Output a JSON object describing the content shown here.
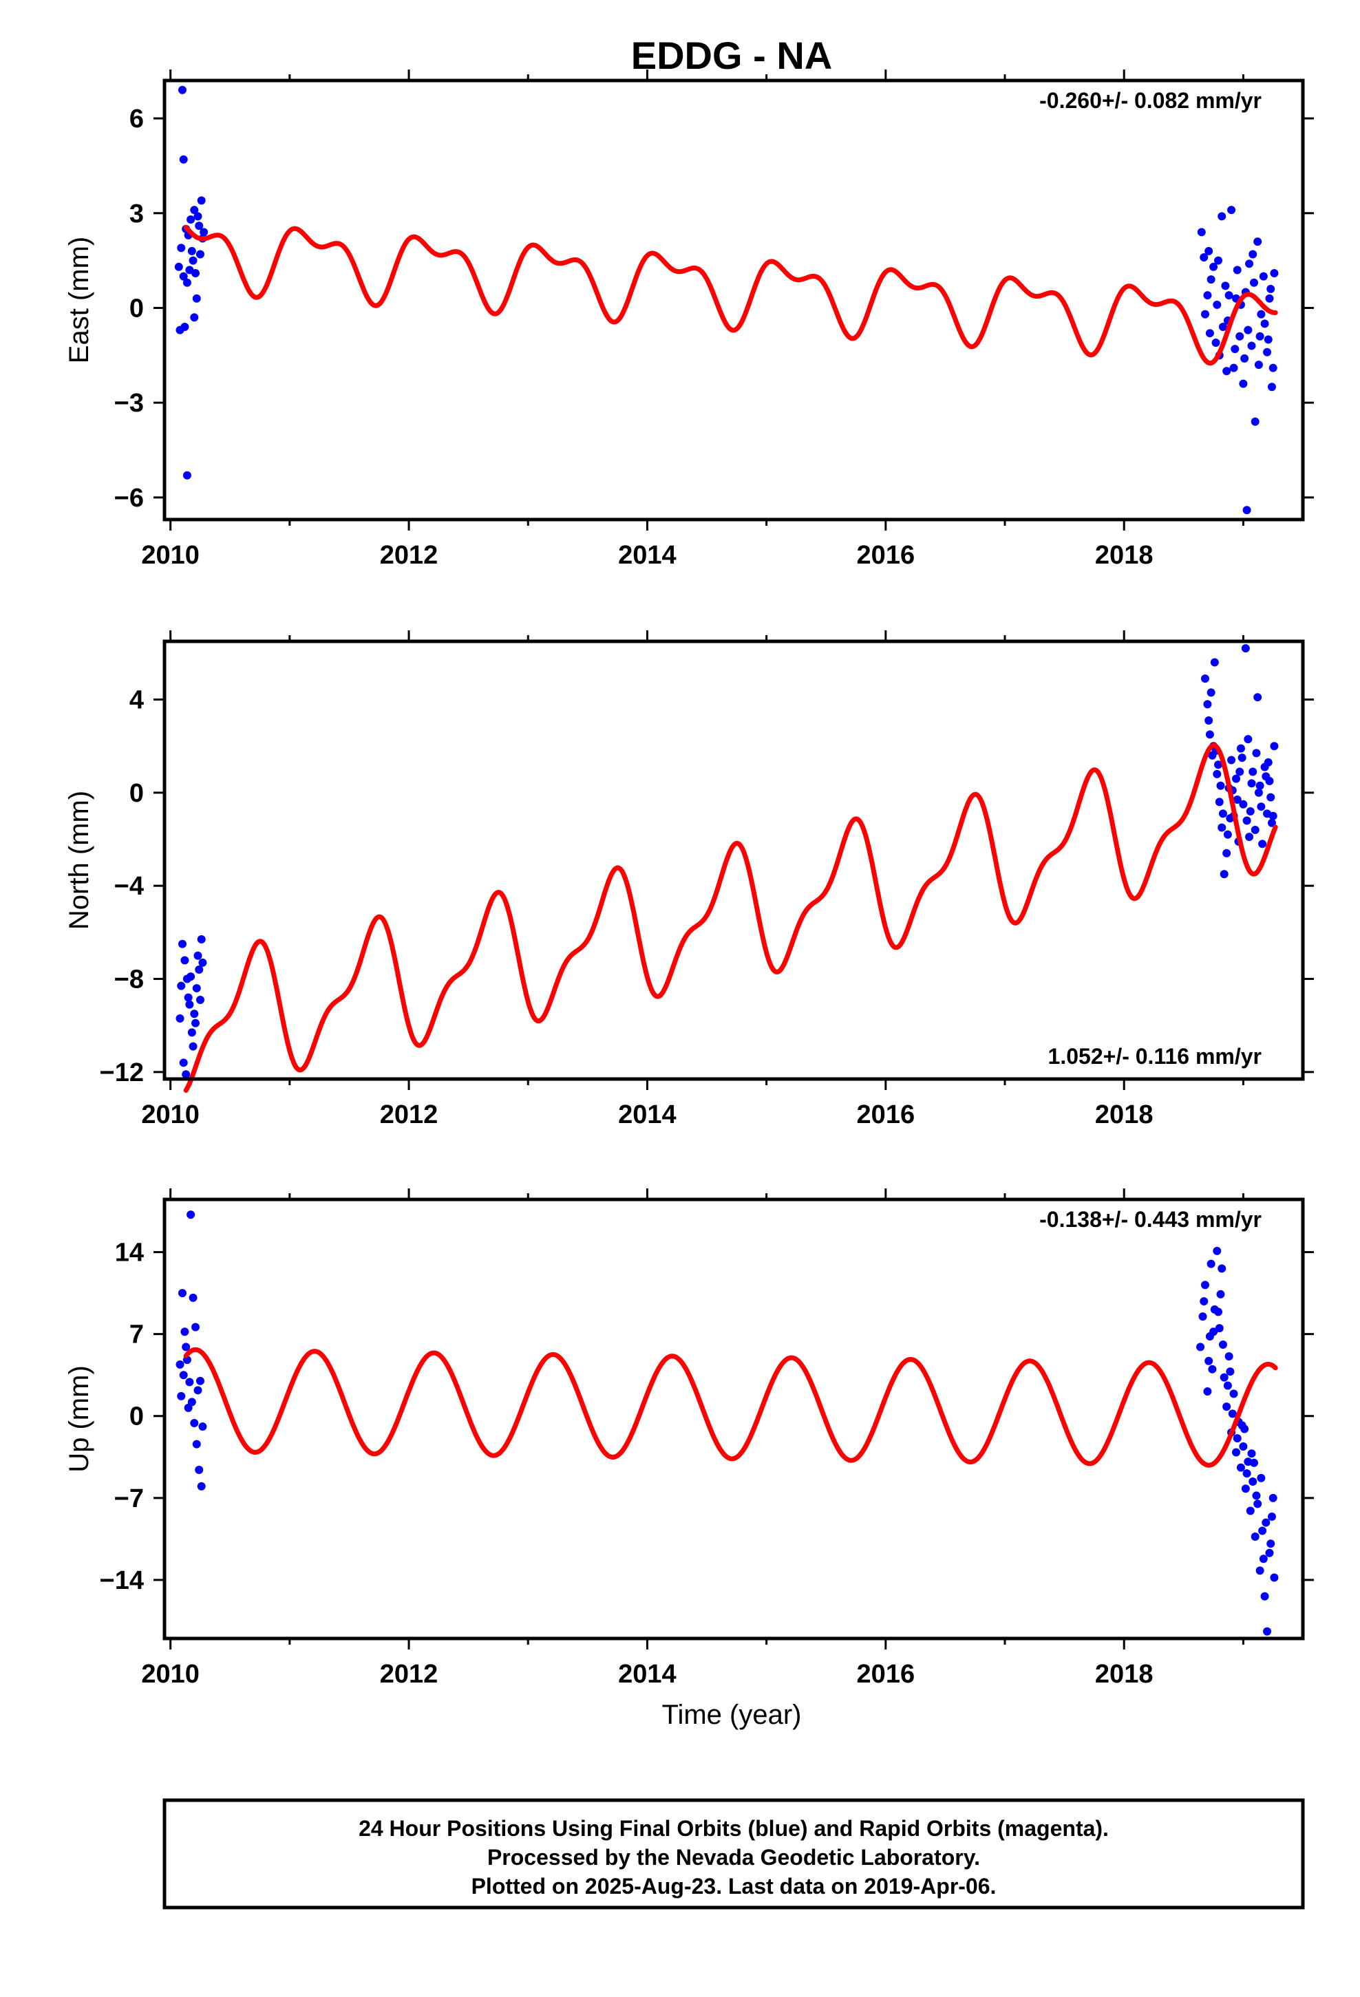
{
  "title": "EDDG - NA",
  "xlabel": "Time (year)",
  "colors": {
    "final_orbits": "#0000ff",
    "model": "#ff0000",
    "frame": "#000000"
  },
  "footer": {
    "line1": "24 Hour Positions Using Final Orbits (blue) and Rapid Orbits (magenta).",
    "line2": "Processed by the Nevada Geodetic Laboratory.",
    "line3": "Plotted on 2025-Aug-23. Last data on 2019-Apr-06."
  },
  "chart_data": [
    {
      "type": "scatter",
      "component": "east",
      "ylabel": "East (mm)",
      "rate_label": "-0.260+/- 0.082 mm/yr",
      "rate_position": "top-right",
      "xlim": [
        2009.95,
        2019.5
      ],
      "ylim": [
        -6.7,
        7.2
      ],
      "xticks": [
        2010,
        2012,
        2014,
        2016,
        2018
      ],
      "xtick_labels": [
        "2010",
        "2012",
        "2014",
        "2016",
        "2018"
      ],
      "yticks": [
        -6,
        -3,
        0,
        3,
        6
      ],
      "ytick_labels": [
        "−6",
        "−3",
        "0",
        "3",
        "6"
      ],
      "model": {
        "offset": 0.68,
        "rate": -0.26,
        "annual_amp": 0.9,
        "annual_phase": 0.35,
        "semiannual_amp": 0.5,
        "semiannual_phase": 1.8,
        "x_start": 2010.13,
        "x_end": 2019.27
      },
      "points": [
        [
          2010.1,
          6.9
        ],
        [
          2010.11,
          4.7
        ],
        [
          2010.14,
          -5.3
        ],
        [
          2010.08,
          -0.7
        ],
        [
          2010.12,
          -0.6
        ],
        [
          2010.2,
          -0.3
        ],
        [
          2010.22,
          0.3
        ],
        [
          2010.16,
          1.2
        ],
        [
          2010.18,
          1.8
        ],
        [
          2010.24,
          2.6
        ],
        [
          2010.26,
          3.4
        ],
        [
          2010.27,
          2.2
        ],
        [
          2010.15,
          2.3
        ],
        [
          2010.17,
          2.8
        ],
        [
          2010.19,
          1.5
        ],
        [
          2010.09,
          1.9
        ],
        [
          2010.13,
          2.5
        ],
        [
          2010.21,
          1.1
        ],
        [
          2010.23,
          2.9
        ],
        [
          2010.25,
          1.7
        ],
        [
          2010.07,
          1.3
        ],
        [
          2010.28,
          2.4
        ],
        [
          2010.11,
          1.0
        ],
        [
          2010.2,
          3.1
        ],
        [
          2010.14,
          0.8
        ],
        [
          2018.65,
          2.4
        ],
        [
          2018.67,
          1.6
        ],
        [
          2018.7,
          0.4
        ],
        [
          2018.72,
          -0.8
        ],
        [
          2018.75,
          1.3
        ],
        [
          2018.78,
          0.1
        ],
        [
          2018.8,
          -1.5
        ],
        [
          2018.82,
          2.9
        ],
        [
          2018.85,
          0.7
        ],
        [
          2018.87,
          -0.4
        ],
        [
          2018.9,
          3.1
        ],
        [
          2018.92,
          -1.9
        ],
        [
          2018.95,
          1.2
        ],
        [
          2018.97,
          -0.9
        ],
        [
          2019.0,
          -2.4
        ],
        [
          2019.02,
          0.5
        ],
        [
          2019.03,
          -6.4
        ],
        [
          2019.05,
          1.4
        ],
        [
          2019.07,
          -1.2
        ],
        [
          2019.1,
          -3.6
        ],
        [
          2019.12,
          2.1
        ],
        [
          2019.15,
          -0.2
        ],
        [
          2019.17,
          1.0
        ],
        [
          2019.2,
          -1.4
        ],
        [
          2019.22,
          0.3
        ],
        [
          2019.24,
          -2.5
        ],
        [
          2019.26,
          1.1
        ],
        [
          2018.68,
          -0.2
        ],
        [
          2018.73,
          0.9
        ],
        [
          2018.77,
          -1.1
        ],
        [
          2018.83,
          -0.6
        ],
        [
          2018.88,
          0.4
        ],
        [
          2018.93,
          -1.3
        ],
        [
          2018.98,
          0.1
        ],
        [
          2019.04,
          -0.7
        ],
        [
          2019.09,
          0.8
        ],
        [
          2019.13,
          -1.8
        ],
        [
          2019.18,
          -0.5
        ],
        [
          2019.23,
          0.6
        ],
        [
          2018.71,
          1.8
        ],
        [
          2018.79,
          1.5
        ],
        [
          2018.86,
          -2.0
        ],
        [
          2018.94,
          0.3
        ],
        [
          2019.01,
          -1.6
        ],
        [
          2019.08,
          1.7
        ],
        [
          2019.14,
          -0.9
        ],
        [
          2019.21,
          -1.0
        ],
        [
          2019.25,
          -1.9
        ]
      ]
    },
    {
      "type": "scatter",
      "component": "north",
      "ylabel": "North (mm)",
      "rate_label": "1.052+/- 0.116 mm/yr",
      "rate_position": "bottom-right",
      "xlim": [
        2009.95,
        2019.5
      ],
      "ylim": [
        -12.3,
        6.5
      ],
      "xticks": [
        2010,
        2012,
        2014,
        2016,
        2018
      ],
      "xtick_labels": [
        "2010",
        "2012",
        "2014",
        "2016",
        "2018"
      ],
      "yticks": [
        -12,
        -8,
        -4,
        0,
        4
      ],
      "ytick_labels": [
        "−12",
        "−8",
        "−4",
        "0",
        "4"
      ],
      "model": {
        "offset": -5.25,
        "rate": 1.052,
        "annual_amp": 2.4,
        "annual_phase": 3.6,
        "semiannual_amp": 1.0,
        "semiannual_phase": 4.2,
        "x_start": 2010.13,
        "x_end": 2019.27
      },
      "points": [
        [
          2010.1,
          -6.5
        ],
        [
          2010.12,
          -7.2
        ],
        [
          2010.14,
          -8.0
        ],
        [
          2010.16,
          -9.1
        ],
        [
          2010.18,
          -10.3
        ],
        [
          2010.11,
          -11.6
        ],
        [
          2010.13,
          -12.1
        ],
        [
          2010.2,
          -9.5
        ],
        [
          2010.22,
          -8.4
        ],
        [
          2010.24,
          -7.6
        ],
        [
          2010.26,
          -6.3
        ],
        [
          2010.15,
          -8.8
        ],
        [
          2010.17,
          -7.9
        ],
        [
          2010.19,
          -10.9
        ],
        [
          2010.21,
          -9.9
        ],
        [
          2010.23,
          -7.0
        ],
        [
          2010.09,
          -8.3
        ],
        [
          2010.25,
          -8.9
        ],
        [
          2010.27,
          -7.3
        ],
        [
          2010.08,
          -9.7
        ],
        [
          2018.68,
          4.9
        ],
        [
          2018.7,
          3.8
        ],
        [
          2018.72,
          2.5
        ],
        [
          2018.74,
          1.6
        ],
        [
          2018.76,
          5.6
        ],
        [
          2018.78,
          0.8
        ],
        [
          2018.8,
          -0.4
        ],
        [
          2018.82,
          -1.5
        ],
        [
          2018.84,
          -3.5
        ],
        [
          2018.86,
          -2.6
        ],
        [
          2018.88,
          0.2
        ],
        [
          2018.9,
          1.4
        ],
        [
          2018.92,
          -1.0
        ],
        [
          2018.94,
          0.6
        ],
        [
          2018.96,
          -2.1
        ],
        [
          2018.98,
          1.9
        ],
        [
          2019.0,
          -0.5
        ],
        [
          2019.02,
          6.2
        ],
        [
          2019.04,
          2.3
        ],
        [
          2019.06,
          -0.8
        ],
        [
          2019.08,
          0.9
        ],
        [
          2019.1,
          -1.6
        ],
        [
          2019.12,
          4.1
        ],
        [
          2019.14,
          0.3
        ],
        [
          2019.16,
          -2.2
        ],
        [
          2019.18,
          1.1
        ],
        [
          2019.2,
          -0.9
        ],
        [
          2019.22,
          0.5
        ],
        [
          2019.24,
          -1.3
        ],
        [
          2019.26,
          2.0
        ],
        [
          2018.71,
          3.1
        ],
        [
          2018.75,
          2.0
        ],
        [
          2018.79,
          1.2
        ],
        [
          2018.83,
          -0.9
        ],
        [
          2018.87,
          -1.8
        ],
        [
          2018.91,
          0.1
        ],
        [
          2018.95,
          -0.3
        ],
        [
          2018.99,
          1.5
        ],
        [
          2019.03,
          -1.2
        ],
        [
          2019.07,
          0.4
        ],
        [
          2019.11,
          1.7
        ],
        [
          2019.15,
          -0.6
        ],
        [
          2019.19,
          0.7
        ],
        [
          2019.23,
          -0.2
        ],
        [
          2018.73,
          4.3
        ],
        [
          2018.77,
          1.8
        ],
        [
          2018.81,
          0.3
        ],
        [
          2018.89,
          -1.1
        ],
        [
          2018.97,
          0.9
        ],
        [
          2019.05,
          -1.9
        ],
        [
          2019.13,
          0.0
        ],
        [
          2019.21,
          1.3
        ],
        [
          2019.25,
          -1.0
        ]
      ]
    },
    {
      "type": "scatter",
      "component": "up",
      "ylabel": "Up (mm)",
      "rate_label": "-0.138+/- 0.443 mm/yr",
      "rate_position": "top-right",
      "xlim": [
        2009.95,
        2019.5
      ],
      "ylim": [
        -19,
        18.5
      ],
      "xticks": [
        2010,
        2012,
        2014,
        2016,
        2018
      ],
      "xtick_labels": [
        "2010",
        "2012",
        "2014",
        "2016",
        "2018"
      ],
      "yticks": [
        -14,
        -7,
        0,
        7,
        14
      ],
      "ytick_labels": [
        "−14",
        "−7",
        "0",
        "7",
        "14"
      ],
      "model": {
        "offset": 0.7,
        "rate": -0.138,
        "annual_amp": 4.35,
        "annual_phase": 0.25,
        "semiannual_amp": 0.0,
        "semiannual_phase": 0.0,
        "x_start": 2010.13,
        "x_end": 2019.27
      },
      "points": [
        [
          2010.1,
          10.5
        ],
        [
          2010.12,
          7.2
        ],
        [
          2010.14,
          4.8
        ],
        [
          2010.16,
          2.9
        ],
        [
          2010.18,
          1.2
        ],
        [
          2010.2,
          -0.6
        ],
        [
          2010.22,
          -2.4
        ],
        [
          2010.24,
          -4.6
        ],
        [
          2010.26,
          -6.0
        ],
        [
          2010.11,
          3.5
        ],
        [
          2010.13,
          5.9
        ],
        [
          2010.15,
          0.7
        ],
        [
          2010.17,
          17.2
        ],
        [
          2010.19,
          10.1
        ],
        [
          2010.21,
          7.6
        ],
        [
          2010.23,
          2.2
        ],
        [
          2010.25,
          3.0
        ],
        [
          2010.09,
          1.7
        ],
        [
          2010.27,
          -0.9
        ],
        [
          2010.08,
          4.4
        ],
        [
          2018.64,
          5.9
        ],
        [
          2018.66,
          8.5
        ],
        [
          2018.68,
          11.2
        ],
        [
          2018.7,
          2.1
        ],
        [
          2018.72,
          6.8
        ],
        [
          2018.74,
          4.0
        ],
        [
          2018.76,
          9.1
        ],
        [
          2018.78,
          14.1
        ],
        [
          2018.8,
          7.5
        ],
        [
          2018.82,
          12.6
        ],
        [
          2018.84,
          3.3
        ],
        [
          2018.86,
          0.8
        ],
        [
          2018.88,
          5.1
        ],
        [
          2018.9,
          -1.4
        ],
        [
          2018.92,
          1.9
        ],
        [
          2018.94,
          -3.1
        ],
        [
          2018.96,
          -0.5
        ],
        [
          2018.98,
          -4.4
        ],
        [
          2019.0,
          -2.6
        ],
        [
          2019.02,
          -6.2
        ],
        [
          2019.04,
          -3.9
        ],
        [
          2019.06,
          -8.1
        ],
        [
          2019.08,
          -5.6
        ],
        [
          2019.1,
          -10.3
        ],
        [
          2019.12,
          -7.5
        ],
        [
          2019.14,
          -13.2
        ],
        [
          2019.16,
          -9.8
        ],
        [
          2019.18,
          -15.4
        ],
        [
          2019.2,
          -18.4
        ],
        [
          2019.22,
          -11.7
        ],
        [
          2019.24,
          -8.6
        ],
        [
          2019.26,
          -13.8
        ],
        [
          2018.67,
          9.8
        ],
        [
          2018.71,
          4.7
        ],
        [
          2018.75,
          7.2
        ],
        [
          2018.79,
          8.9
        ],
        [
          2018.83,
          6.1
        ],
        [
          2018.87,
          2.6
        ],
        [
          2018.91,
          0.2
        ],
        [
          2018.95,
          -1.9
        ],
        [
          2018.99,
          -0.8
        ],
        [
          2019.03,
          -4.9
        ],
        [
          2019.07,
          -3.2
        ],
        [
          2019.11,
          -6.8
        ],
        [
          2019.15,
          -5.3
        ],
        [
          2019.19,
          -9.1
        ],
        [
          2019.23,
          -10.9
        ],
        [
          2019.25,
          -7.0
        ],
        [
          2018.73,
          13.0
        ],
        [
          2018.81,
          10.4
        ],
        [
          2018.89,
          3.8
        ],
        [
          2019.01,
          -1.1
        ],
        [
          2019.09,
          -4.0
        ],
        [
          2019.17,
          -12.2
        ]
      ]
    }
  ]
}
